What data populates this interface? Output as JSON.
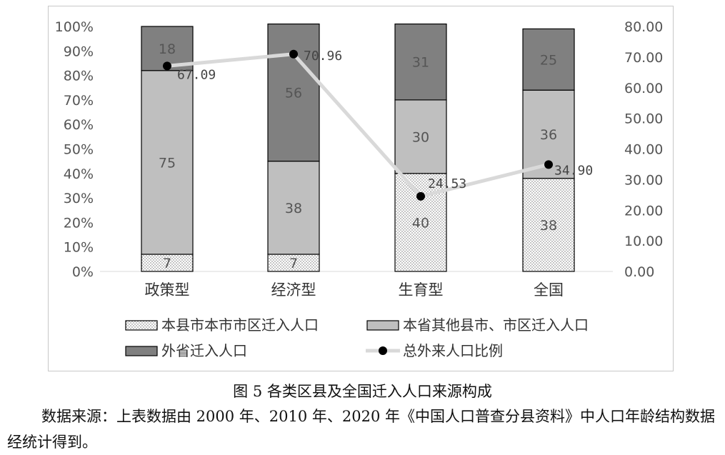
{
  "chart_data": {
    "type": "bar",
    "stacked": true,
    "categories": [
      "政策型",
      "经济型",
      "生育型",
      "全国"
    ],
    "series": [
      {
        "name": "本县市本市市区迁入人口",
        "values": [
          7,
          7,
          40,
          38
        ],
        "color": "#ffffff",
        "pattern": "dots"
      },
      {
        "name": "本省其他县市、市区迁入人口",
        "values": [
          75,
          38,
          30,
          36
        ],
        "color": "#bfbfbf"
      },
      {
        "name": "外省迁入人口",
        "values": [
          18,
          56,
          31,
          25
        ],
        "color": "#808080"
      }
    ],
    "line_series": {
      "name": "总外来人口比例",
      "values": [
        67.09,
        70.96,
        24.53,
        34.9
      ],
      "labels": [
        "67.09",
        "70.96",
        "24.53",
        "34.90"
      ],
      "line_color": "#d9d9d9",
      "marker_color": "#000000",
      "axis": "right"
    },
    "y_left": {
      "ticks": [
        "0%",
        "10%",
        "20%",
        "30%",
        "40%",
        "50%",
        "60%",
        "70%",
        "80%",
        "90%",
        "100%"
      ],
      "range": [
        0,
        100
      ]
    },
    "y_right": {
      "ticks": [
        "0.00",
        "10.00",
        "20.00",
        "30.00",
        "40.00",
        "50.00",
        "60.00",
        "70.00",
        "80.00"
      ],
      "range": [
        0,
        80
      ]
    },
    "grid": false,
    "legend_position": "bottom"
  },
  "caption": "图 5 各类区县及全国迁入人口来源构成",
  "source_note": "数据来源：上表数据由 2000 年、2010 年、2020 年《中国人口普查分县资料》中人口年龄结构数据经统计得到。"
}
